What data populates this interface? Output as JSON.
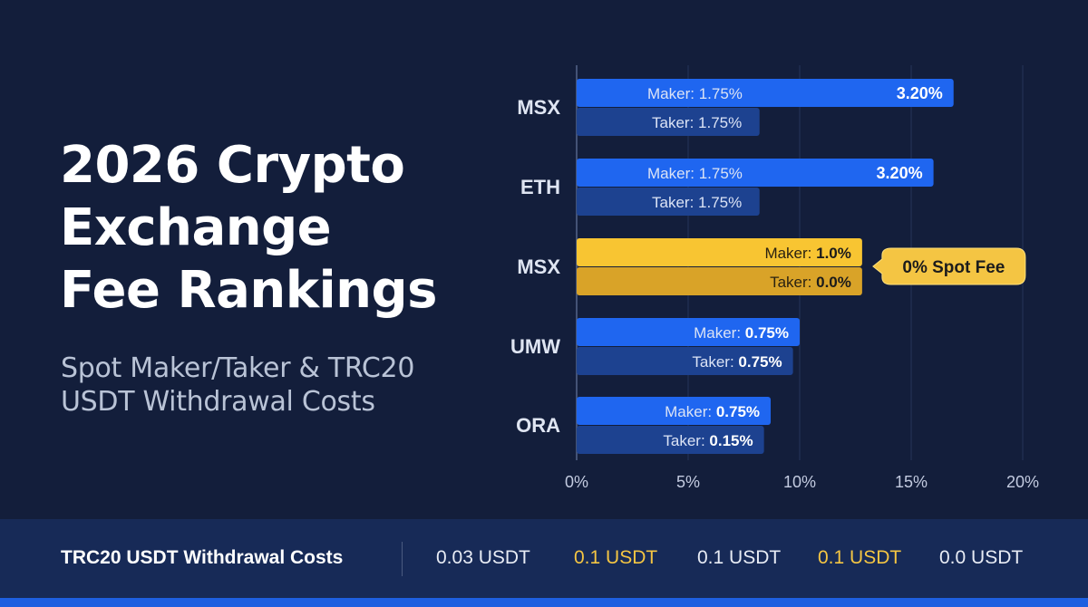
{
  "headline": {
    "title_lines": [
      "2026 Crypto",
      "Exchange",
      "Fee Rankings"
    ],
    "subtitle_lines": [
      "Spot Maker/Taker & TRC20",
      "USDT Withdrawal Costs"
    ]
  },
  "chart_data": {
    "type": "bar",
    "orientation": "horizontal",
    "categories": [
      "MSX",
      "ETH",
      "MSX",
      "UMW",
      "ORA"
    ],
    "xlim": [
      0,
      20
    ],
    "x_ticks": [
      "0%",
      "5%",
      "10%",
      "15%",
      "20%"
    ],
    "grid": true,
    "series": [
      {
        "name": "Maker",
        "values": [
          16.9,
          16.0,
          12.8,
          10.0,
          8.7
        ],
        "labels": [
          "Maker: 1.75%",
          "Maker: 1.75%",
          "Maker: 1.0%",
          "Maker: 0.75%",
          "Maker: 0.75%"
        ],
        "total_labels": [
          "3.20%",
          "3.20%",
          "",
          "",
          ""
        ]
      },
      {
        "name": "Taker",
        "values": [
          8.2,
          8.2,
          12.8,
          9.7,
          8.4
        ],
        "labels": [
          "Taker: 1.75%",
          "Taker: 1.75%",
          "Taker: 0.0%",
          "Taker: 0.75%",
          "Taker: 0.15%"
        ]
      }
    ],
    "highlight_index": 2,
    "callout": "0% Spot Fee",
    "colors": {
      "maker": "#1f66f0",
      "taker": "#1d4290",
      "maker_highlight": "#f8c532",
      "taker_highlight": "#d9a328",
      "callout": "#f4c543",
      "axis": "#3c4a6a",
      "tick": "#c3cbe0"
    }
  },
  "footer": {
    "label": "TRC20 USDT Withdrawal Costs",
    "values": [
      {
        "text": "0.03 USDT",
        "color": "#e8ecf5"
      },
      {
        "text": "0.1 USDT",
        "color": "#f4c543"
      },
      {
        "text": "0.1 USDT",
        "color": "#e8ecf5"
      },
      {
        "text": "0.1 USDT",
        "color": "#f4c543"
      },
      {
        "text": "0.0 USDT",
        "color": "#e8ecf5"
      }
    ]
  }
}
